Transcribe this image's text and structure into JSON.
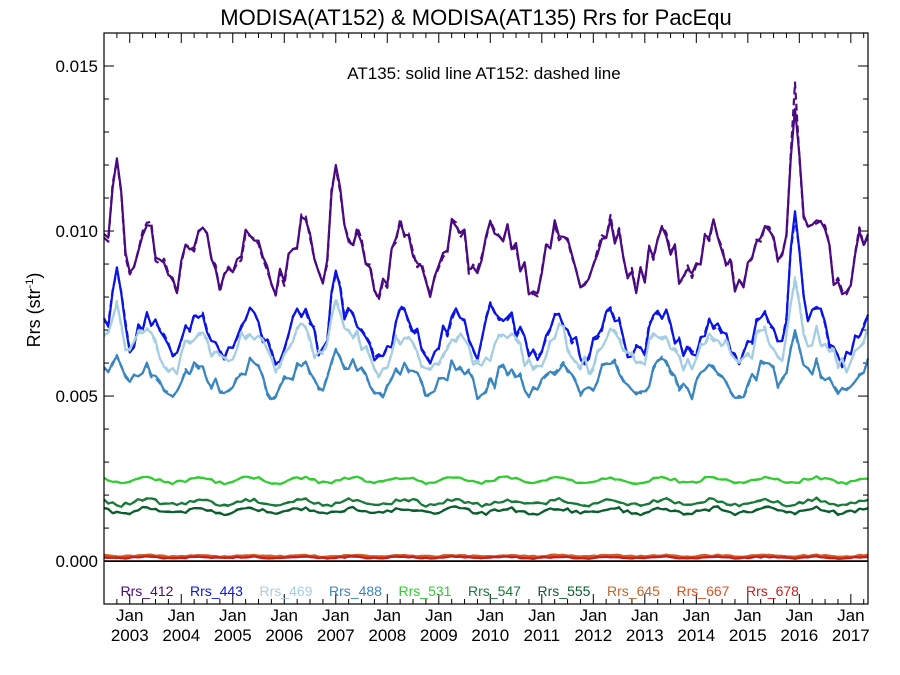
{
  "chart_data": {
    "type": "line",
    "title": "MODISA(AT152) & MODISA(AT135)  Rrs for PacEqu",
    "annotation": "AT135: solid line   AT152: dashed line",
    "ylabel": "Rrs (str",
    "ylabel_sup": "-1",
    "ylabel_close": ")",
    "xlim": [
      "2002-07",
      "2017-05"
    ],
    "ylim": [
      -0.0013,
      0.016
    ],
    "yticks": [
      "0.000",
      "0.005",
      "0.010",
      "0.015"
    ],
    "ytick_values": [
      0.0,
      0.005,
      0.01,
      0.015
    ],
    "x_month_label": "Jan",
    "x_year_labels": [
      "2003",
      "2004",
      "2005",
      "2006",
      "2007",
      "2008",
      "2009",
      "2010",
      "2011",
      "2012",
      "2013",
      "2014",
      "2015",
      "2016",
      "2017"
    ],
    "x_start": "2002-07",
    "frequency": "monthly",
    "series_styles": {
      "AT135": "solid",
      "AT152": "dashed"
    },
    "reference_line": 0.0,
    "series": [
      {
        "name": "Rrs_412",
        "color": "#4B0A82",
        "base": 0.0092,
        "amp": 0.0008,
        "noise": 0.00045,
        "events": [
          {
            "date": "2002-10",
            "value": 0.0122
          },
          {
            "date": "2007-01",
            "value": 0.012
          },
          {
            "date": "2010-01",
            "value": 0.0103
          },
          {
            "date": "2015-12",
            "value": 0.0137
          }
        ],
        "dashed_peak": {
          "date": "2015-12",
          "value": 0.0145
        }
      },
      {
        "name": "Rrs_443",
        "color": "#0A14E6",
        "base": 0.0068,
        "amp": 0.0006,
        "noise": 0.00035,
        "events": [
          {
            "date": "2002-10",
            "value": 0.0089
          },
          {
            "date": "2007-01",
            "value": 0.0088
          },
          {
            "date": "2010-01",
            "value": 0.0078
          },
          {
            "date": "2015-12",
            "value": 0.0106
          }
        ],
        "dashed_peak": {
          "date": "2015-12",
          "value": 0.0104
        }
      },
      {
        "name": "Rrs_469",
        "color": "#A6CEE3",
        "base": 0.0064,
        "amp": 0.0005,
        "noise": 0.0003,
        "events": [
          {
            "date": "2002-10",
            "value": 0.0078
          },
          {
            "date": "2007-01",
            "value": 0.0079
          },
          {
            "date": "2015-12",
            "value": 0.0085
          }
        ],
        "dashed_peak": {
          "date": "2015-12",
          "value": 0.0086
        }
      },
      {
        "name": "Rrs_488",
        "color": "#3A86C0",
        "base": 0.0055,
        "amp": 0.0004,
        "noise": 0.00025,
        "events": [
          {
            "date": "2002-10",
            "value": 0.0062
          },
          {
            "date": "2007-01",
            "value": 0.0064
          },
          {
            "date": "2015-12",
            "value": 0.007
          }
        ],
        "dashed_peak": {
          "date": "2015-12",
          "value": 0.0069
        }
      },
      {
        "name": "Rrs_531",
        "color": "#33CC33",
        "base": 0.00245,
        "amp": 8e-05,
        "noise": 5e-05,
        "events": []
      },
      {
        "name": "Rrs_547",
        "color": "#1A7A3A",
        "base": 0.00178,
        "amp": 8e-05,
        "noise": 6e-05,
        "events": []
      },
      {
        "name": "Rrs_555",
        "color": "#0B5E2E",
        "base": 0.00152,
        "amp": 8e-05,
        "noise": 6e-05,
        "events": []
      },
      {
        "name": "Rrs_645",
        "color": "#C8642A",
        "base": 0.00016,
        "amp": 2e-05,
        "noise": 2e-05,
        "events": []
      },
      {
        "name": "Rrs_667",
        "color": "#E0501E",
        "base": 0.00013,
        "amp": 2e-05,
        "noise": 2e-05,
        "events": []
      },
      {
        "name": "Rrs_678",
        "color": "#C81E1E",
        "base": 0.00011,
        "amp": 2e-05,
        "noise": 2e-05,
        "events": []
      }
    ]
  }
}
